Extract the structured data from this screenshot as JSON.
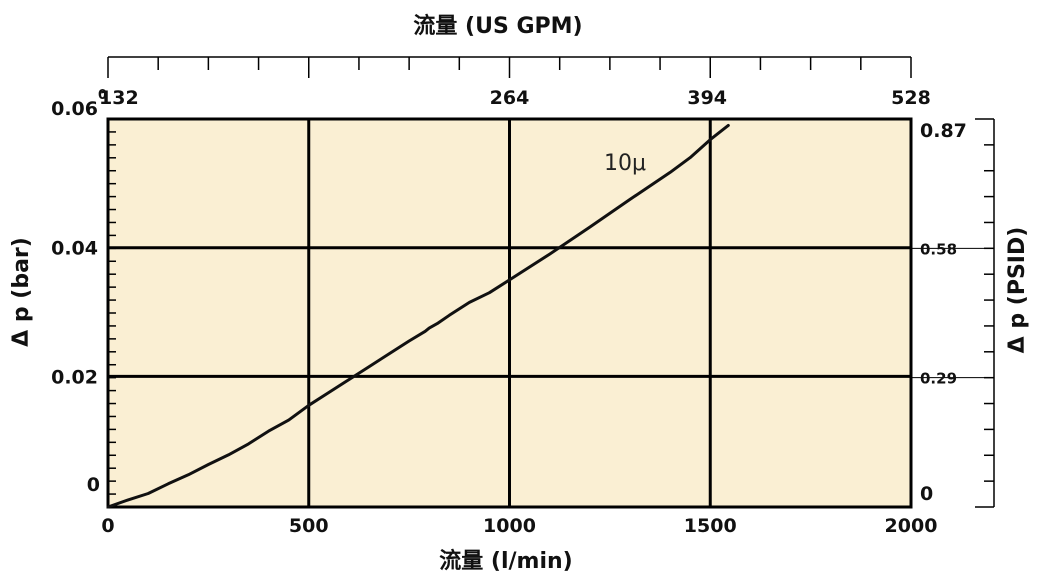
{
  "chart_data": {
    "type": "line",
    "xlabel": "流量 (l/min)",
    "x2label": "流量 (US GPM)",
    "ylabel": "Δ p (bar)",
    "y2label": "Δ p (PSID)",
    "xlim": [
      0,
      2000
    ],
    "ylim": [
      -0.0003,
      0.06
    ],
    "x_ticks": [
      0,
      500,
      1000,
      1500,
      2000
    ],
    "x_tick_labels": [
      "0",
      "500",
      "1000",
      "1500",
      "2000"
    ],
    "y_ticks": [
      -0.0003,
      0.02,
      0.04,
      0.06
    ],
    "y_tick_labels": [
      "0",
      "0.02",
      "0.04",
      "0.06"
    ],
    "top_ticks": [
      0,
      132,
      264,
      394,
      528
    ],
    "top_tick_labels": [
      "0",
      "132",
      "264",
      "394",
      "528"
    ],
    "right_ticks": [
      0,
      0.29,
      0.58,
      0.87
    ],
    "right_tick_labels": [
      "0",
      "0.29",
      "0.58",
      "0.87"
    ],
    "grid": true,
    "background_color": "#faefd3",
    "series": [
      {
        "name": "10μ",
        "color": "#111111",
        "x": [
          0,
          50,
          100,
          150,
          200,
          250,
          300,
          350,
          400,
          450,
          500,
          550,
          600,
          650,
          700,
          750,
          790,
          800,
          820,
          850,
          900,
          950,
          1000,
          1100,
          1200,
          1300,
          1400,
          1450,
          1500,
          1545
        ],
        "y": [
          -0.0003,
          0.0008,
          0.0018,
          0.0033,
          0.0047,
          0.0063,
          0.0078,
          0.0095,
          0.0115,
          0.0132,
          0.0155,
          0.0175,
          0.0195,
          0.0215,
          0.0235,
          0.0255,
          0.027,
          0.0275,
          0.0282,
          0.0295,
          0.0315,
          0.033,
          0.035,
          0.039,
          0.0432,
          0.0475,
          0.0517,
          0.054,
          0.0568,
          0.059
        ]
      }
    ]
  }
}
